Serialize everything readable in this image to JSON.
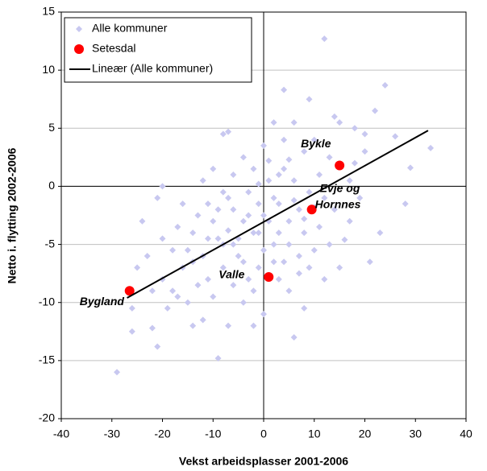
{
  "chart_data": {
    "type": "scatter",
    "x_label": "Vekst arbeidsplasser 2001-2006",
    "y_label": "Netto i. flytting 2002-2006",
    "xlim": [
      -40,
      40
    ],
    "ylim": [
      -20,
      15
    ],
    "xticks": [
      -40,
      -30,
      -20,
      -10,
      0,
      10,
      20,
      30,
      40
    ],
    "yticks": [
      -20,
      -15,
      -10,
      -5,
      0,
      5,
      10,
      15
    ],
    "grid": true,
    "legend": "upper left",
    "series": [
      {
        "name": "Alle kommuner",
        "color": "#c8c8f0",
        "marker": "diamond",
        "x": [
          12,
          -8,
          -7,
          4,
          9,
          14,
          15,
          24,
          22,
          26,
          20,
          18,
          28,
          29,
          33,
          23,
          21,
          16,
          14,
          12,
          10,
          8,
          6,
          5,
          3,
          2,
          1,
          0,
          -1,
          -2,
          -3,
          -4,
          -5,
          -6,
          -7,
          -8,
          -9,
          -10,
          -11,
          -12,
          -13,
          -14,
          -15,
          -16,
          -17,
          -18,
          -19,
          -20,
          -21,
          -22,
          -23,
          -25,
          -26,
          -26,
          -29,
          -21,
          -9,
          -22,
          -4,
          -2,
          0,
          3,
          5,
          6,
          8,
          7,
          4,
          2,
          -1,
          -3,
          -6,
          -8,
          -10,
          -13,
          -15,
          -17,
          -20,
          -12,
          -14,
          -7,
          -2,
          3,
          5,
          7,
          9,
          11,
          13,
          17,
          19,
          20,
          10,
          8,
          6,
          4,
          2,
          0,
          -2,
          -4,
          -6,
          -8,
          -10,
          -11,
          -12,
          -20,
          -16,
          -18,
          -24,
          -14,
          -9,
          -5,
          -3,
          -1,
          1,
          3,
          5,
          7,
          9,
          11,
          13,
          15,
          1,
          -1,
          2,
          0,
          -4,
          -6,
          4,
          6,
          8,
          10,
          12,
          -11,
          -7,
          17,
          18
        ],
        "values": [
          12.7,
          4.5,
          4.7,
          8.3,
          7.5,
          6,
          5.5,
          8.7,
          6.5,
          4.3,
          3,
          2,
          -1.5,
          1.6,
          3.3,
          -4,
          -6.5,
          -4.6,
          -2,
          -1,
          -5.5,
          -4,
          0.5,
          2.3,
          1,
          -1,
          2.2,
          -2.5,
          -1.5,
          -4,
          -0.5,
          -3,
          -6,
          -2,
          -1,
          -5,
          -4.5,
          -3,
          -8,
          -6,
          -2.5,
          -4,
          -5.5,
          -7,
          -3.5,
          -9,
          -10.5,
          -4.5,
          -1,
          -9,
          -6,
          -7,
          -10.5,
          -12.5,
          -16,
          -13.8,
          -14.8,
          -12.2,
          -10,
          -9,
          -11,
          -8,
          -9,
          -13,
          -10.5,
          -7.5,
          -6.5,
          -5,
          -7,
          -8,
          -8.5,
          -7,
          -9.5,
          -8.5,
          -10,
          -9.5,
          -8,
          -11.5,
          -12,
          -12,
          -12,
          -4,
          -3,
          -2,
          -0.5,
          1,
          2.5,
          0.5,
          -1,
          4.5,
          4,
          3,
          5.5,
          4,
          5.5,
          3.5,
          1.5,
          2.5,
          1,
          -0.5,
          1.5,
          -1.5,
          0.5,
          0,
          -1.5,
          -5.5,
          -3,
          -6.5,
          -2,
          -4.5,
          -2.5,
          -4,
          -3,
          -1.5,
          -5,
          -6,
          -7,
          -3.5,
          -5,
          -7,
          0.5,
          0.2,
          -6.5,
          -5.5,
          -6.5,
          -5,
          1.5,
          -1.2,
          -2.8,
          -1.8,
          -8,
          -4.5,
          -3.8,
          -3,
          5
        ]
      },
      {
        "name": "Setesdal",
        "color": "#ff0000",
        "marker": "circle",
        "x": [
          15,
          9.5,
          1,
          -26.5
        ],
        "values": [
          1.8,
          -2,
          -7.8,
          -9
        ],
        "labels": [
          "Bykle",
          "Evje og Hornnes",
          "Valle",
          "Bygland"
        ]
      },
      {
        "name": "Lineær (Alle kommuner)",
        "color": "#000000",
        "marker": "line",
        "x": [
          -27,
          32.5
        ],
        "values": [
          -9.6,
          4.8
        ]
      }
    ]
  }
}
